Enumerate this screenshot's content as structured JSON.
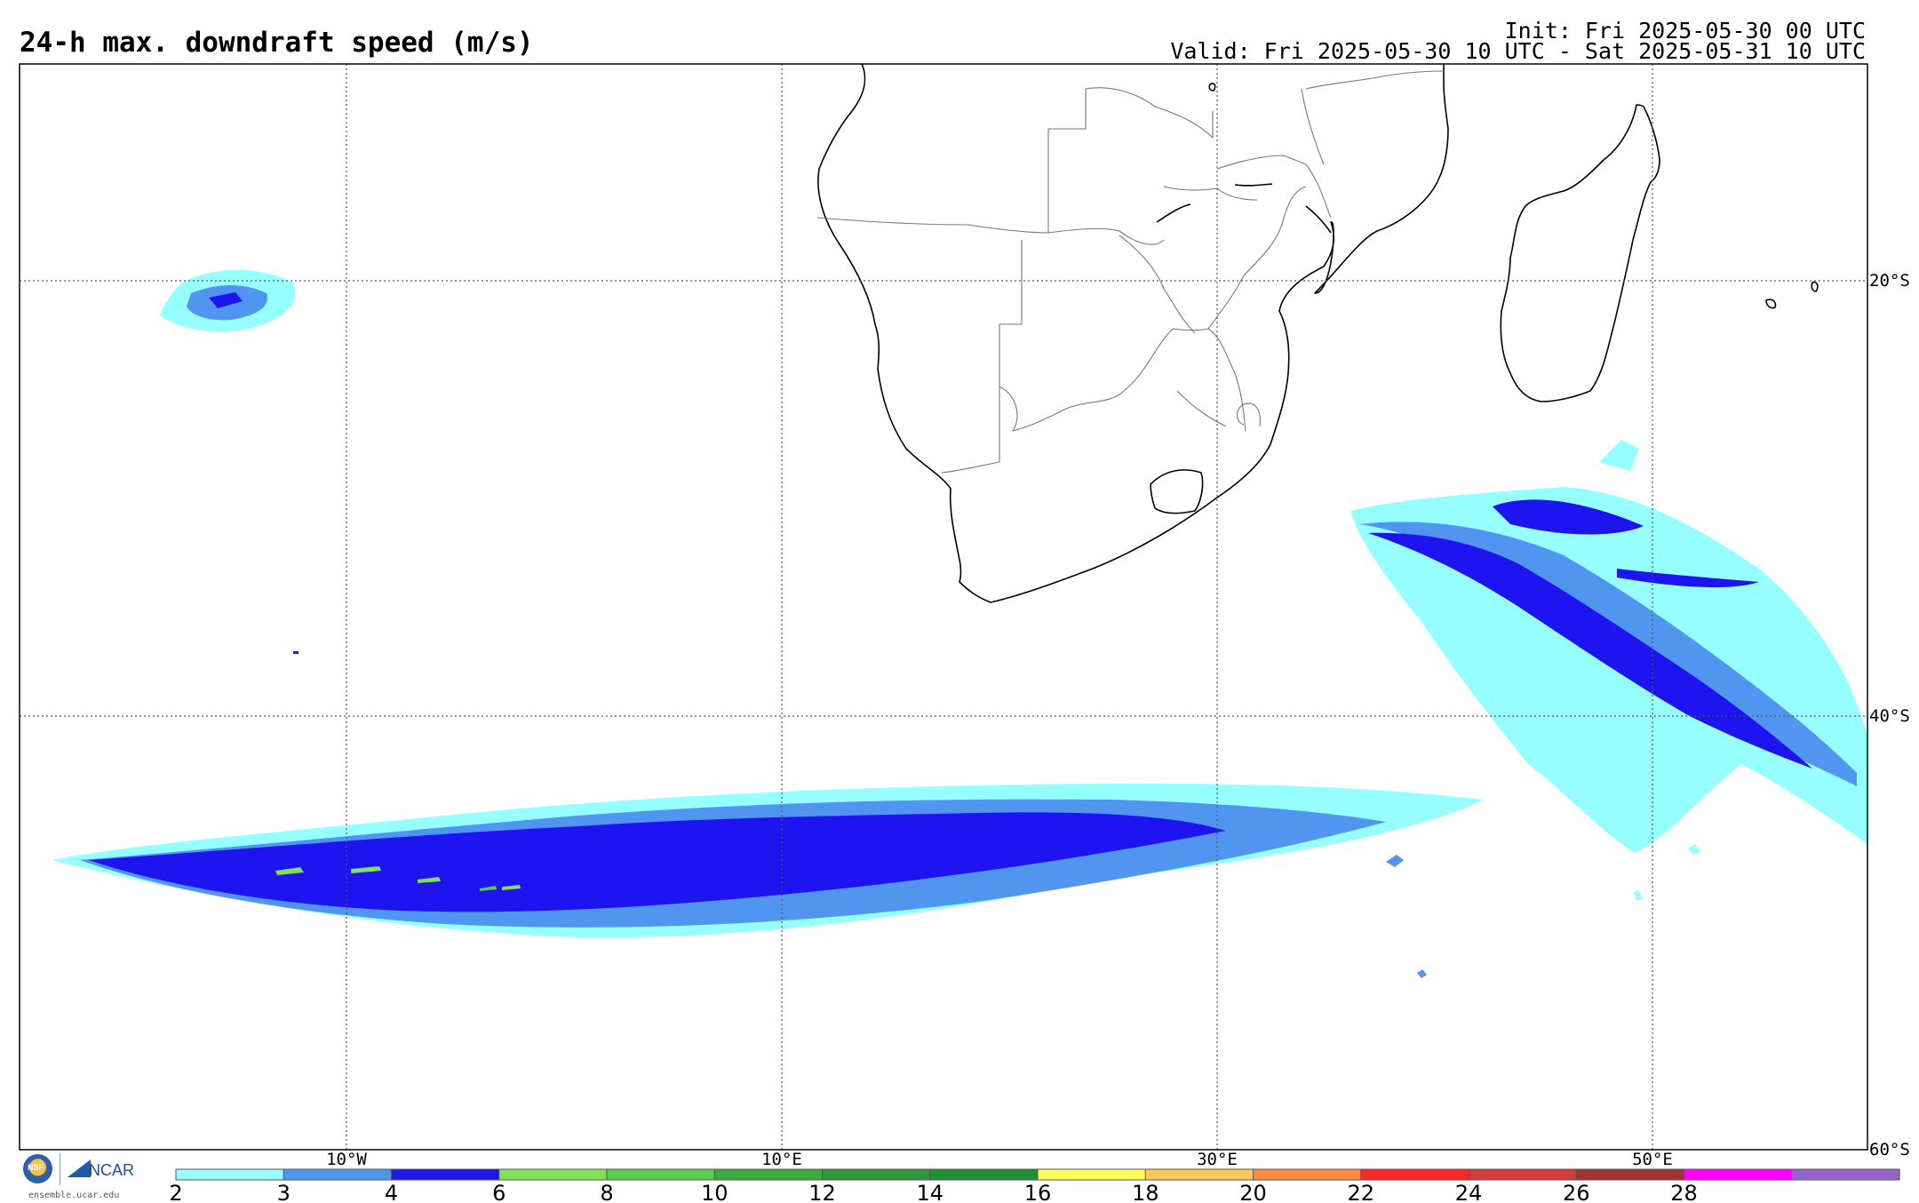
{
  "header": {
    "title": "24-h max. downdraft speed (m/s)",
    "init": "Init: Fri 2025-05-30 00 UTC",
    "valid": "Valid: Fri 2025-05-30 10 UTC - Sat 2025-05-31 10 UTC"
  },
  "map": {
    "lon_labels": [
      "10°W",
      "10°E",
      "30°E",
      "50°E"
    ],
    "lat_labels": [
      "20°S",
      "40°S",
      "60°S"
    ]
  },
  "colorbar": {
    "labels": [
      "2",
      "3",
      "4",
      "6",
      "8",
      "10",
      "12",
      "14",
      "16",
      "18",
      "20",
      "22",
      "24",
      "26",
      "28"
    ],
    "colors": [
      "#96ffff",
      "#5096f0",
      "#1e14f0",
      "#82e15a",
      "#5acd50",
      "#3caa3c",
      "#2d963c",
      "#219133",
      "#ffff5a",
      "#ffc85a",
      "#ff8c46",
      "#ff2828",
      "#d23c3c",
      "#a03232",
      "#ff00ff",
      "#9664c8"
    ]
  },
  "footer": {
    "site": "ensemble.ucar.edu",
    "nsf": "NSF",
    "ncar": "NCAR"
  }
}
